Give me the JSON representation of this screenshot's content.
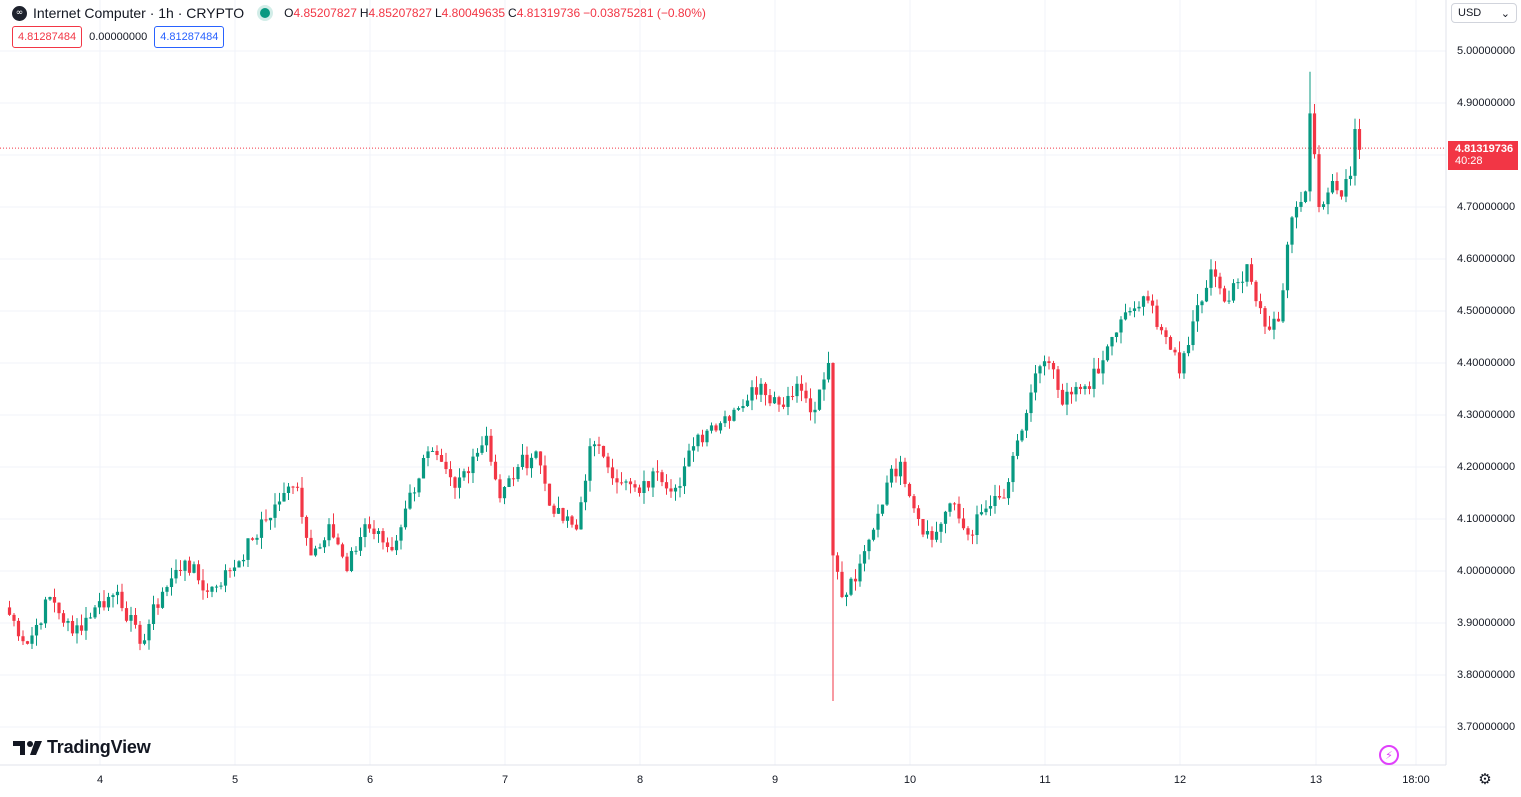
{
  "header": {
    "symbol_title": "Internet Computer · 1h · CRYPTO",
    "ohlc": {
      "open_label": "O",
      "open": "4.85207827",
      "high_label": "H",
      "high": "4.85207827",
      "low_label": "L",
      "low": "4.80049635",
      "close_label": "C",
      "close": "4.81319736",
      "change": "−0.03875281 (−0.80%)"
    },
    "bid": "4.81287484",
    "spread": "0.00000000",
    "ask": "4.81287484"
  },
  "currency_select": {
    "value": "USD"
  },
  "last_price": {
    "value": "4.81319736",
    "countdown": "40:28"
  },
  "branding": {
    "name": "TradingView"
  },
  "colors": {
    "up": "#089981",
    "down": "#f23645",
    "grid": "#f0f3fa",
    "ask_blue": "#2962ff"
  },
  "icons": {
    "logo": "tradingview-logo-icon",
    "settings": "gear-icon",
    "alert": "lightning-icon",
    "symbol": "infinity-icon"
  },
  "chart_data": {
    "type": "candlestick",
    "y_ticks": [
      "5.00000000",
      "4.90000000",
      "4.80000000",
      "4.70000000",
      "4.60000000",
      "4.50000000",
      "4.40000000",
      "4.30000000",
      "4.20000000",
      "4.10000000",
      "4.00000000",
      "3.90000000",
      "3.80000000",
      "3.70000000"
    ],
    "x_ticks": [
      "4",
      "5",
      "6",
      "7",
      "8",
      "9",
      "10",
      "11",
      "12",
      "13",
      "18:00"
    ],
    "ylim": [
      3.66,
      5.06
    ],
    "grid": true,
    "last_price_line": 4.81319736,
    "anchors": [
      [
        0,
        3.93
      ],
      [
        5,
        3.86
      ],
      [
        10,
        3.95
      ],
      [
        15,
        3.88
      ],
      [
        20,
        3.93
      ],
      [
        25,
        3.96
      ],
      [
        30,
        3.86
      ],
      [
        35,
        3.96
      ],
      [
        40,
        4.02
      ],
      [
        45,
        3.96
      ],
      [
        50,
        4.0
      ],
      [
        55,
        4.06
      ],
      [
        62,
        4.15
      ],
      [
        65,
        4.16
      ],
      [
        68,
        4.03
      ],
      [
        72,
        4.09
      ],
      [
        76,
        4.0
      ],
      [
        80,
        4.09
      ],
      [
        86,
        4.04
      ],
      [
        89,
        4.12
      ],
      [
        94,
        4.23
      ],
      [
        100,
        4.16
      ],
      [
        104,
        4.22
      ],
      [
        107,
        4.26
      ],
      [
        110,
        4.14
      ],
      [
        114,
        4.2
      ],
      [
        118,
        4.23
      ],
      [
        122,
        4.11
      ],
      [
        127,
        4.08
      ],
      [
        130,
        4.24
      ],
      [
        133,
        4.22
      ],
      [
        137,
        4.17
      ],
      [
        141,
        4.15
      ],
      [
        145,
        4.19
      ],
      [
        149,
        4.16
      ],
      [
        153,
        4.24
      ],
      [
        157,
        4.28
      ],
      [
        162,
        4.31
      ],
      [
        168,
        4.36
      ],
      [
        172,
        4.32
      ],
      [
        176,
        4.36
      ],
      [
        180,
        4.31
      ],
      [
        183,
        4.4
      ],
      [
        184,
        4.03
      ],
      [
        186,
        3.95
      ],
      [
        189,
        3.98
      ],
      [
        192,
        4.06
      ],
      [
        196,
        4.17
      ],
      [
        199,
        4.21
      ],
      [
        203,
        4.1
      ],
      [
        206,
        4.06
      ],
      [
        210,
        4.13
      ],
      [
        214,
        4.07
      ],
      [
        218,
        4.12
      ],
      [
        222,
        4.14
      ],
      [
        226,
        4.27
      ],
      [
        229,
        4.38
      ],
      [
        232,
        4.4
      ],
      [
        235,
        4.32
      ],
      [
        239,
        4.35
      ],
      [
        243,
        4.38
      ],
      [
        246,
        4.45
      ],
      [
        250,
        4.5
      ],
      [
        254,
        4.52
      ],
      [
        258,
        4.45
      ],
      [
        261,
        4.38
      ],
      [
        264,
        4.48
      ],
      [
        268,
        4.58
      ],
      [
        272,
        4.52
      ],
      [
        276,
        4.59
      ],
      [
        280,
        4.47
      ],
      [
        283,
        4.48
      ],
      [
        286,
        4.68
      ],
      [
        289,
        4.73
      ],
      [
        290,
        4.88
      ],
      [
        292,
        4.7
      ],
      [
        295,
        4.75
      ],
      [
        297,
        4.72
      ],
      [
        299,
        4.76
      ],
      [
        300,
        4.85
      ],
      [
        301,
        4.81
      ]
    ]
  }
}
